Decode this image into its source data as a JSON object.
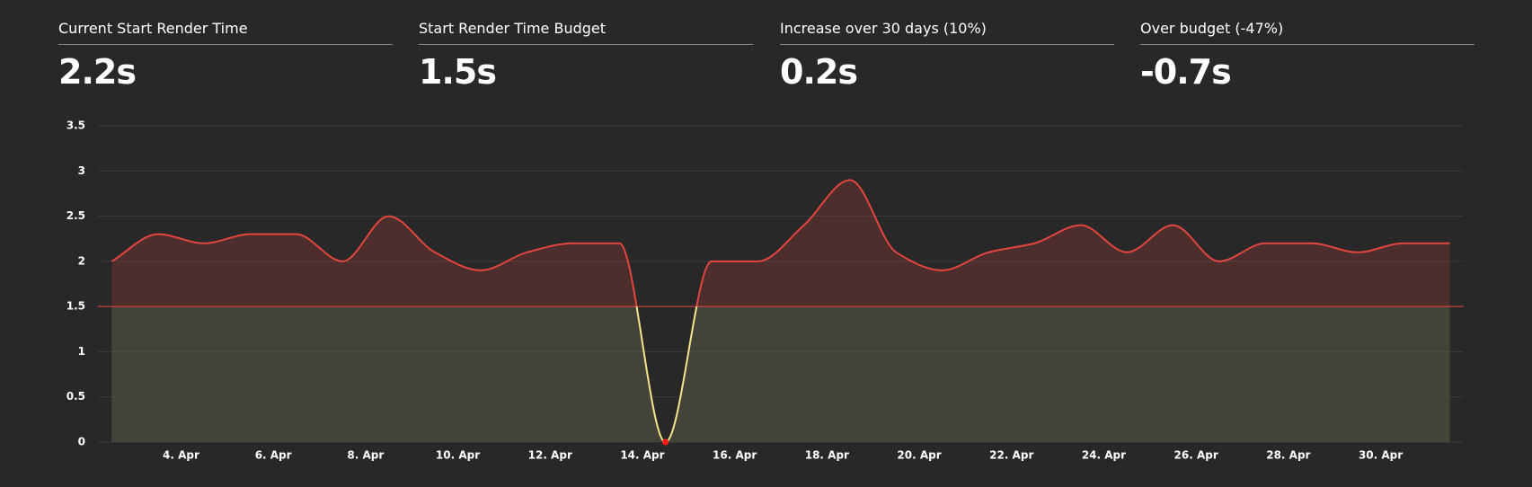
{
  "stats": [
    {
      "label": "Current Start Render Time",
      "value": "2.2s"
    },
    {
      "label": "Start Render Time Budget",
      "value": "1.5s"
    },
    {
      "label": "Increase over 30 days (10%)",
      "value": "0.2s"
    },
    {
      "label": "Over budget (-47%)",
      "value": "-0.7s"
    }
  ],
  "chart_data": {
    "type": "line",
    "x": [
      2.5,
      3.5,
      4.5,
      5.5,
      6.5,
      7.5,
      8.5,
      9.5,
      10.5,
      11.5,
      12.5,
      13.5,
      14.5,
      15.5,
      16.5,
      17.5,
      18.5,
      19.5,
      20.5,
      21.5,
      22.5,
      23.5,
      24.5,
      25.5,
      26.5,
      27.5,
      28.5,
      29.5,
      30.5,
      31.5
    ],
    "series": [
      {
        "name": "Start Render Time",
        "color": "#e2463f",
        "below_color": "#f5e58a",
        "values": [
          2.0,
          2.3,
          2.2,
          2.3,
          2.3,
          2.0,
          2.5,
          2.1,
          1.9,
          2.1,
          2.2,
          2.2,
          0,
          2.0,
          2.0,
          2.4,
          2.9,
          2.1,
          1.9,
          2.1,
          2.2,
          2.4,
          2.1,
          2.4,
          2.0,
          2.2,
          2.2,
          2.1,
          2.2,
          2.2
        ]
      }
    ],
    "budget": 1.5,
    "budget_color": "#e2463f",
    "xlim": [
      2.2,
      31.8
    ],
    "xticks": [
      {
        "value": 4,
        "label": "4. Apr"
      },
      {
        "value": 6,
        "label": "6. Apr"
      },
      {
        "value": 8,
        "label": "8. Apr"
      },
      {
        "value": 10,
        "label": "10. Apr"
      },
      {
        "value": 12,
        "label": "12. Apr"
      },
      {
        "value": 14,
        "label": "14. Apr"
      },
      {
        "value": 16,
        "label": "16. Apr"
      },
      {
        "value": 18,
        "label": "18. Apr"
      },
      {
        "value": 20,
        "label": "20. Apr"
      },
      {
        "value": 22,
        "label": "22. Apr"
      },
      {
        "value": 24,
        "label": "24. Apr"
      },
      {
        "value": 26,
        "label": "26. Apr"
      },
      {
        "value": 28,
        "label": "28. Apr"
      },
      {
        "value": 30,
        "label": "30. Apr"
      }
    ],
    "ylim": [
      0,
      3.5
    ],
    "yticks": [
      0,
      0.5,
      1,
      1.5,
      2,
      2.5,
      3,
      3.5
    ],
    "grid": true
  }
}
